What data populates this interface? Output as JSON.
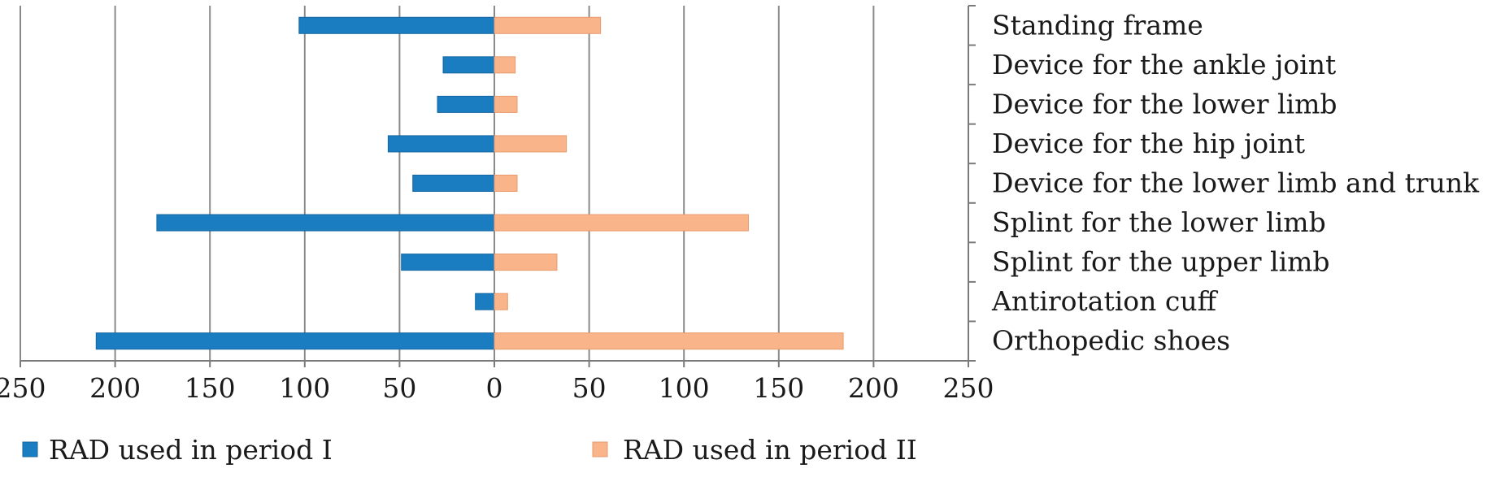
{
  "chart_data": {
    "type": "bar",
    "orientation": "horizontal-butterfly",
    "categories": [
      "Standing frame",
      "Device for the ankle joint",
      "Device for the lower limb",
      "Device for the hip joint",
      "Device for the lower limb and trunk",
      "Splint for the lower limb",
      "Splint for the upper limb",
      "Antirotation cuff",
      "Orthopedic shoes"
    ],
    "series": [
      {
        "name": "RAD used in period I",
        "color": "#1a7dc1",
        "direction": "left",
        "values": [
          103,
          27,
          30,
          56,
          43,
          178,
          49,
          10,
          210
        ]
      },
      {
        "name": "RAD used in period II",
        "color": "#f9b48a",
        "direction": "right",
        "values": [
          56,
          11,
          12,
          38,
          12,
          134,
          33,
          7,
          184
        ]
      }
    ],
    "xlim": [
      -250,
      250
    ],
    "xticks": [
      -250,
      -200,
      -150,
      -100,
      -50,
      0,
      50,
      100,
      150,
      200,
      250
    ],
    "xtick_labels": [
      "250",
      "200",
      "150",
      "100",
      "50",
      "0",
      "50",
      "100",
      "150",
      "200",
      "250"
    ],
    "grid": "vertical",
    "legend_position": "bottom",
    "title": "",
    "xlabel": "",
    "ylabel": ""
  }
}
